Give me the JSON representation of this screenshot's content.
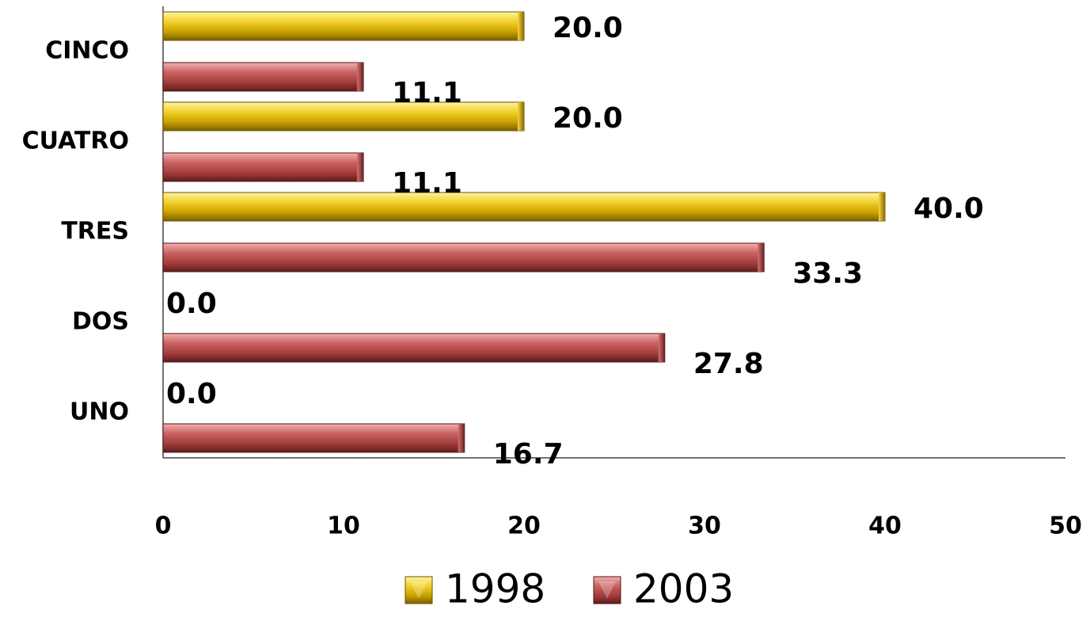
{
  "chart_data": {
    "type": "bar",
    "orientation": "horizontal",
    "categories": [
      "UNO",
      "DOS",
      "TRES",
      "CUATRO",
      "CINCO"
    ],
    "series": [
      {
        "name": "1998",
        "values": [
          0.0,
          0.0,
          40.0,
          20.0,
          20.0
        ],
        "color": "#d9b400"
      },
      {
        "name": "2003",
        "values": [
          16.7,
          27.8,
          33.3,
          11.1,
          11.1
        ],
        "color": "#b24a4a"
      }
    ],
    "data_labels": {
      "1998": [
        "0.0",
        "0.0",
        "40.0",
        "20.0",
        "20.0"
      ],
      "2003": [
        "16.7",
        "27.8",
        "33.3",
        "11.1",
        "11.1"
      ]
    },
    "x_ticks": [
      "0",
      "10",
      "20",
      "30",
      "40",
      "50"
    ],
    "xlim": [
      0,
      50
    ],
    "grid": false,
    "legend_position": "bottom",
    "title": "",
    "xlabel": "",
    "ylabel": ""
  }
}
